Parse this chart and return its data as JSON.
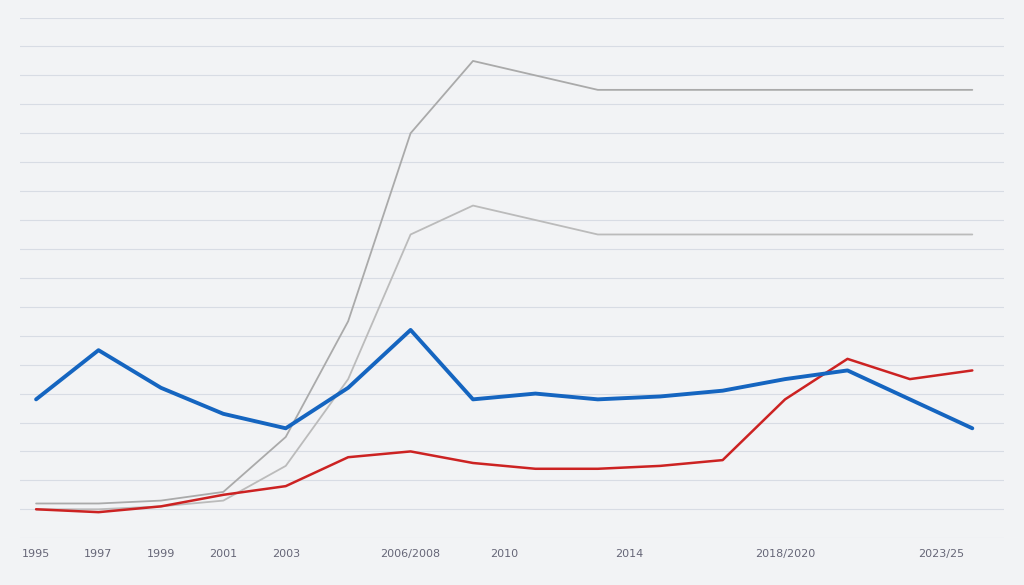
{
  "background_color": "#F2F3F5",
  "grid_color": "#D8DCE4",
  "years": [
    1995,
    1997,
    1999,
    2001,
    2003,
    2005,
    2007,
    2009,
    2011,
    2013,
    2015,
    2017,
    2019,
    2021,
    2023,
    2025
  ],
  "blue_line": [
    4.8,
    6.5,
    5.2,
    4.3,
    3.8,
    5.2,
    7.2,
    4.8,
    5.0,
    4.8,
    4.9,
    5.1,
    5.5,
    5.8,
    4.8,
    3.8
  ],
  "red_line": [
    1.0,
    0.9,
    1.1,
    1.5,
    1.8,
    2.8,
    3.0,
    2.6,
    2.4,
    2.4,
    2.5,
    2.7,
    4.8,
    6.2,
    5.5,
    5.8
  ],
  "gray_line1": [
    1.2,
    1.2,
    1.3,
    1.6,
    3.5,
    7.5,
    14.0,
    16.5,
    16.0,
    15.5,
    15.5,
    15.5,
    15.5,
    15.5,
    15.5,
    15.5
  ],
  "gray_line2": [
    1.0,
    1.0,
    1.1,
    1.3,
    2.5,
    5.5,
    10.5,
    11.5,
    11.0,
    10.5,
    10.5,
    10.5,
    10.5,
    10.5,
    10.5,
    10.5
  ],
  "blue_color": "#1565C0",
  "red_color": "#CC2222",
  "gray_color1": "#AAAAAA",
  "gray_color2": "#BBBBBB",
  "ylim": [
    0,
    18
  ],
  "xlim": [
    1994.5,
    2026
  ],
  "blue_linewidth": 2.8,
  "red_linewidth": 1.8,
  "gray_linewidth1": 1.3,
  "gray_linewidth2": 1.3,
  "x_tick_positions": [
    1995,
    1997,
    1999,
    2001,
    2003,
    2007,
    2010,
    2014,
    2019,
    2024
  ],
  "x_tick_labels": [
    "1995",
    "1997",
    "1999",
    "2001",
    "2003",
    "2006/2008",
    "2010",
    "2014",
    "2018/2020",
    "2023/25"
  ],
  "grid_y_count": 18,
  "tick_fontsize": 8,
  "tick_color": "#666677"
}
